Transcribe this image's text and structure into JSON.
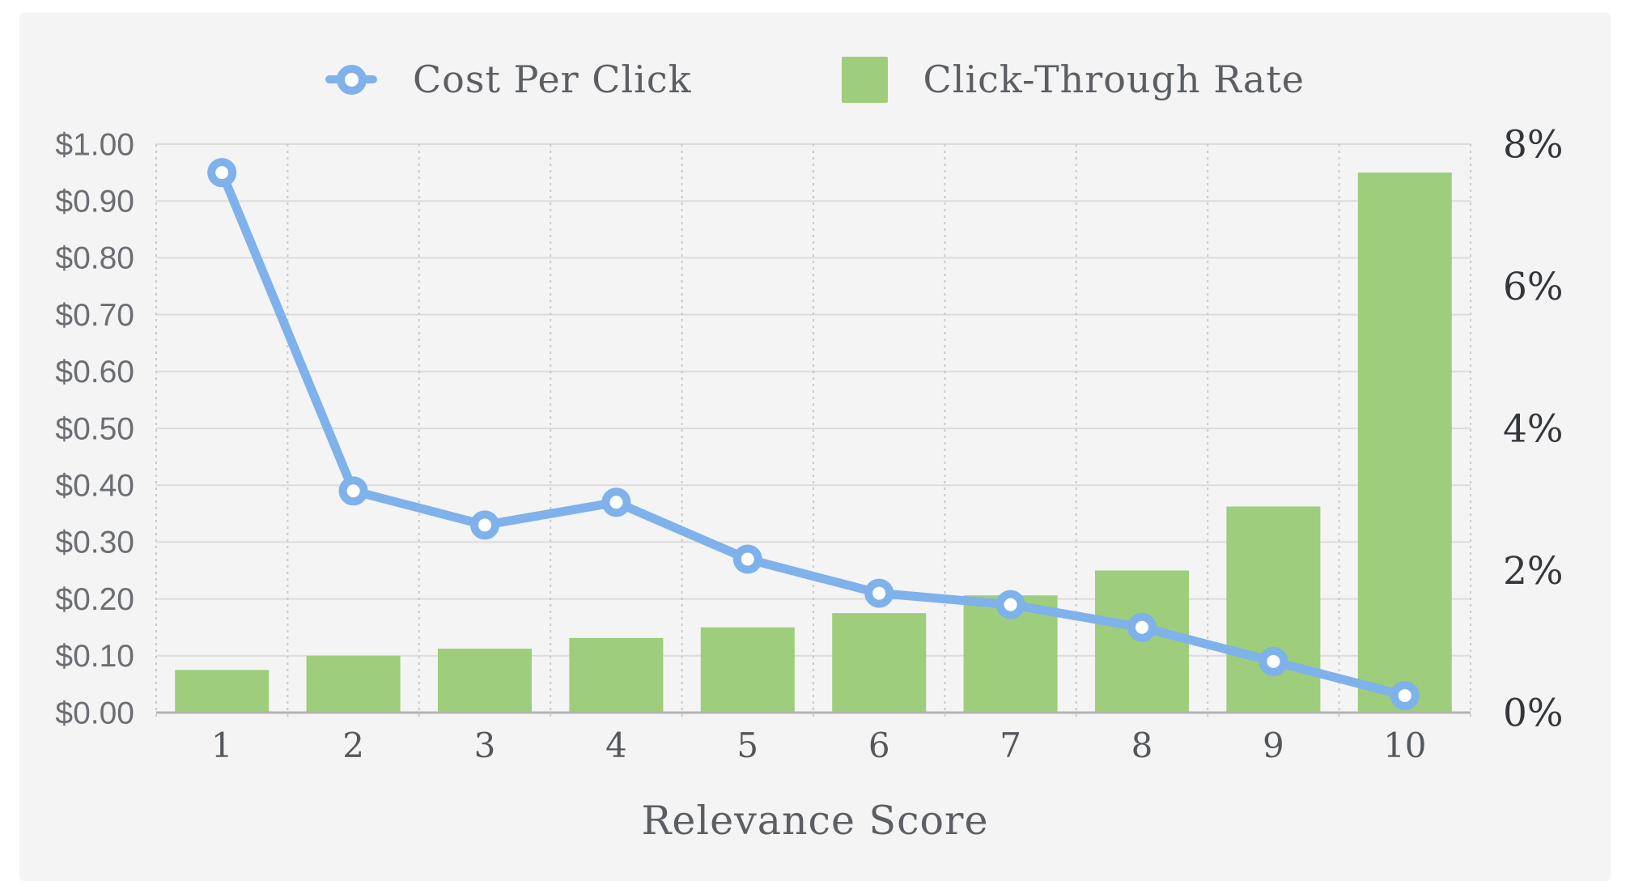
{
  "colors": {
    "page_background": "#ffffff",
    "panel_background": "#f4f4f4",
    "line_series": "#7FB1EB",
    "bar_series": "#9ECD7C",
    "gridline_horizontal": "#dcdcdc",
    "gridline_vertical_dotted": "#c9c9c9",
    "axis_baseline": "#b3b3b3",
    "left_axis_label": "#6b6e73",
    "right_axis_label": "#33363b",
    "x_axis_label": "#54575c",
    "axis_title": "#5b5e63",
    "legend_text": "#5b5e63",
    "marker_fill": "#ffffff"
  },
  "legend": {
    "items": [
      {
        "label": "Cost Per Click",
        "marker": "line-circle-icon"
      },
      {
        "label": "Click-Through Rate",
        "marker": "square-swatch-icon"
      }
    ]
  },
  "chart_data": {
    "type": "combo",
    "subtypes": [
      "line",
      "bar"
    ],
    "title": "",
    "xlabel": "Relevance Score",
    "categories": [
      "1",
      "2",
      "3",
      "4",
      "5",
      "6",
      "7",
      "8",
      "9",
      "10"
    ],
    "series": [
      {
        "name": "Cost Per Click",
        "type": "line",
        "axis": "left",
        "unit": "USD",
        "color": "#7FB1EB",
        "values": [
          0.95,
          0.39,
          0.33,
          0.37,
          0.27,
          0.21,
          0.19,
          0.15,
          0.09,
          0.03
        ]
      },
      {
        "name": "Click-Through Rate",
        "type": "bar",
        "axis": "right",
        "unit": "%",
        "color": "#9ECD7C",
        "values": [
          0.6,
          0.8,
          0.9,
          1.05,
          1.2,
          1.4,
          1.65,
          2.0,
          2.9,
          7.6
        ]
      }
    ],
    "left_axis": {
      "min": 0,
      "max": 1.0,
      "step": 0.1,
      "tick_labels": [
        "$0.00",
        "$0.10",
        "$0.20",
        "$0.30",
        "$0.40",
        "$0.50",
        "$0.60",
        "$0.70",
        "$0.80",
        "$0.90",
        "$1.00"
      ]
    },
    "right_axis": {
      "min": 0,
      "max": 8,
      "step": 2,
      "tick_labels": [
        "0%",
        "2%",
        "4%",
        "6%",
        "8%"
      ]
    },
    "grid": {
      "horizontal_solid": true,
      "vertical_dotted": true
    },
    "legend_position": "top-center"
  }
}
